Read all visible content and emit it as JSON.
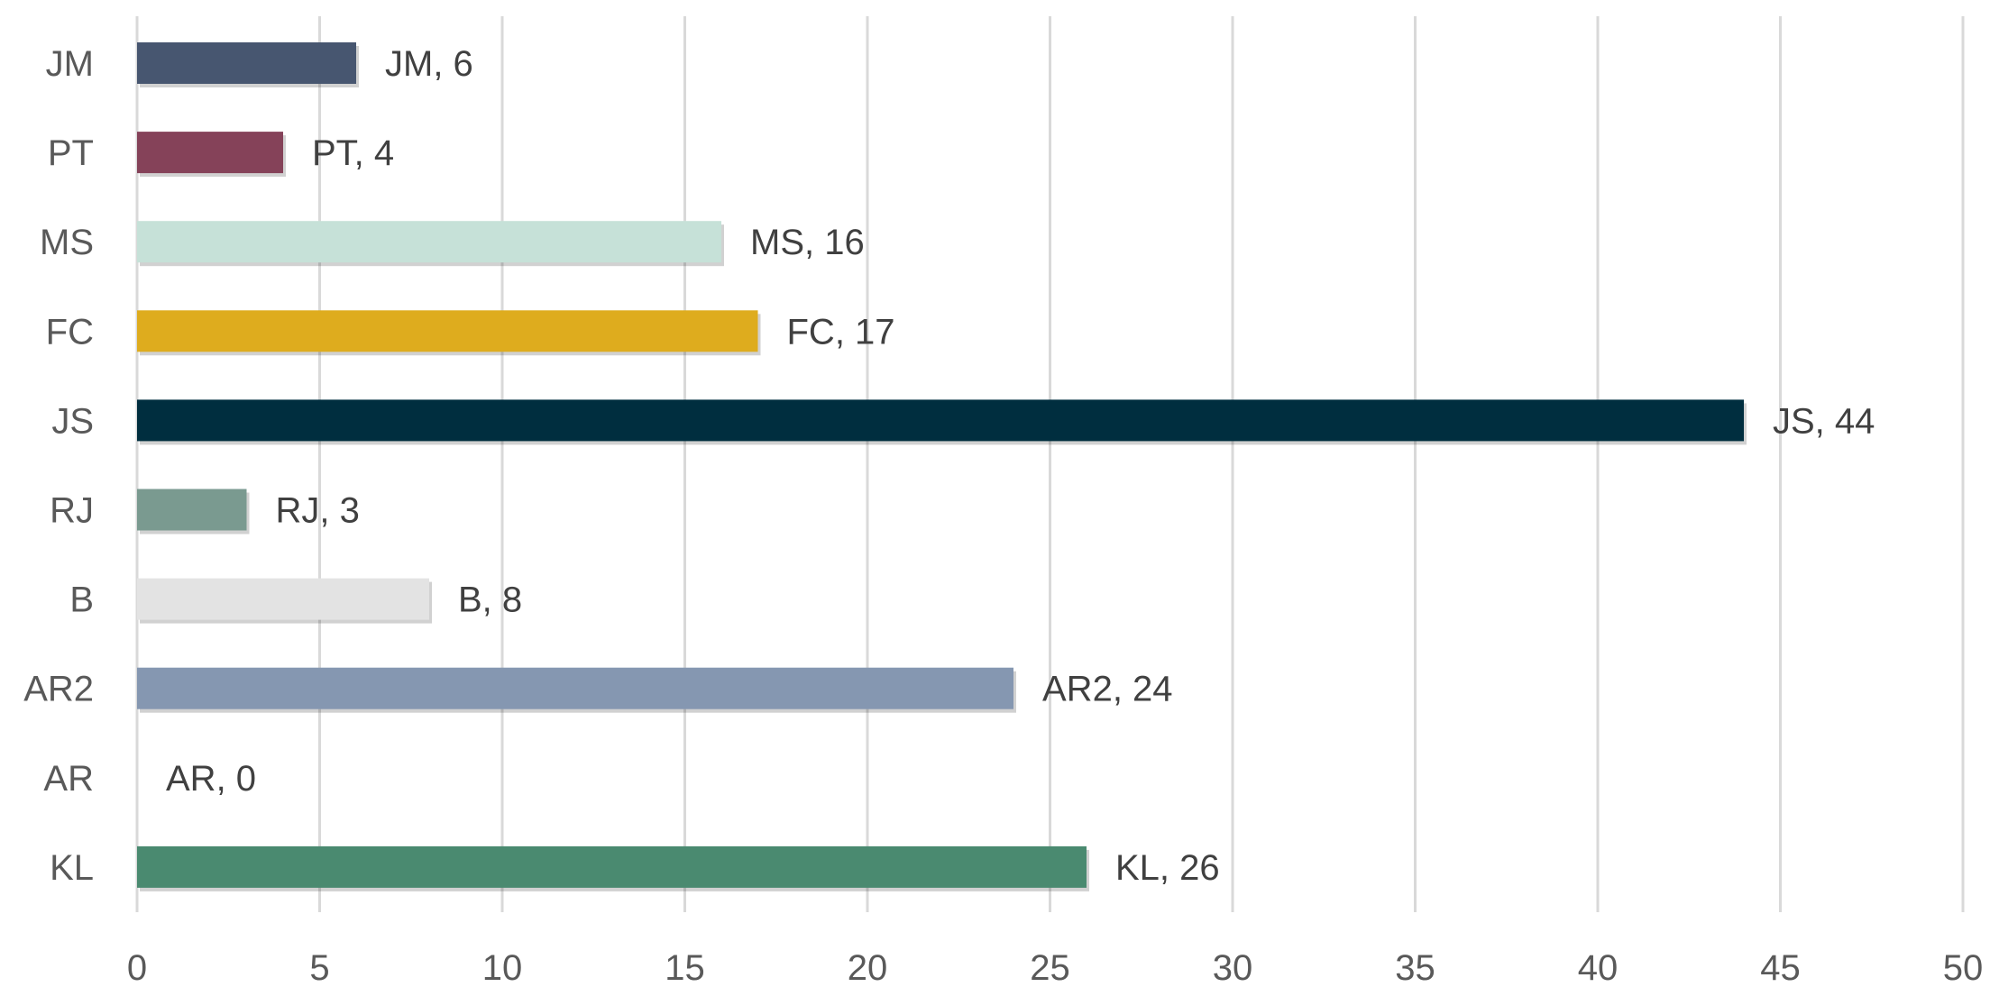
{
  "chart_data": {
    "type": "bar",
    "orientation": "horizontal",
    "categories": [
      "KL",
      "AR",
      "AR2",
      "B",
      "RJ",
      "JS",
      "FC",
      "MS",
      "PT",
      "JM"
    ],
    "values": [
      26,
      0,
      24,
      8,
      3,
      44,
      17,
      16,
      4,
      6
    ],
    "colors": [
      "#4a8a70",
      "#ffffff",
      "#8597b1",
      "#e3e3e3",
      "#7a9a90",
      "#002e3f",
      "#deac1e",
      "#c6e1d8",
      "#854259",
      "#475670"
    ],
    "data_labels": [
      "KL, 26",
      "AR, 0",
      "AR2, 24",
      "B, 8",
      "RJ, 3",
      "JS, 44",
      "FC, 17",
      "MS, 16",
      "PT, 4",
      "JM, 6"
    ],
    "x_ticks": [
      "0",
      "5",
      "10",
      "15",
      "20",
      "25",
      "30",
      "35",
      "40",
      "45",
      "50"
    ],
    "xlim": [
      0,
      50
    ],
    "grid": "vertical"
  }
}
